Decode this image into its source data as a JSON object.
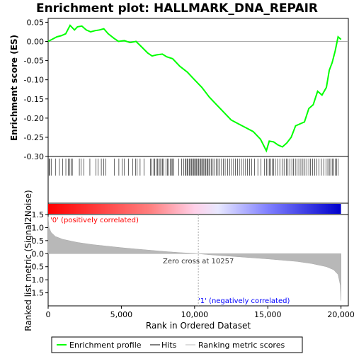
{
  "chart_data": {
    "type": "line",
    "title": "Enrichment plot: HALLMARK_DNA_REPAIR",
    "top_panel": {
      "ylabel": "Enrichment score (ES)",
      "ylim": [
        -0.3,
        0.06
      ],
      "yticks": [
        "0.05",
        "0.00",
        "-0.05",
        "-0.10",
        "-0.15",
        "-0.20",
        "-0.25",
        "-0.30"
      ],
      "ytick_values": [
        0.05,
        0.0,
        -0.05,
        -0.1,
        -0.15,
        -0.2,
        -0.25,
        -0.3
      ],
      "series": [
        {
          "name": "Enrichment profile",
          "color": "#00ff00",
          "x": [
            0,
            250,
            600,
            900,
            1200,
            1500,
            1800,
            2000,
            2300,
            2600,
            2900,
            3200,
            3500,
            3800,
            4100,
            4500,
            4800,
            5200,
            5600,
            6000,
            6400,
            6800,
            7100,
            7400,
            7800,
            8100,
            8500,
            9000,
            9500,
            10000,
            10500,
            11000,
            11500,
            12000,
            12500,
            13000,
            13500,
            14000,
            14500,
            14900,
            15100,
            15400,
            15700,
            16000,
            16300,
            16600,
            16900,
            17200,
            17500,
            17800,
            18100,
            18400,
            18700,
            19000,
            19200,
            19400,
            19600,
            19800,
            20000
          ],
          "y": [
            0.0,
            0.005,
            0.012,
            0.015,
            0.02,
            0.042,
            0.03,
            0.038,
            0.04,
            0.03,
            0.025,
            0.028,
            0.03,
            0.033,
            0.02,
            0.008,
            0.0,
            0.002,
            -0.003,
            0.0,
            -0.015,
            -0.03,
            -0.038,
            -0.035,
            -0.033,
            -0.04,
            -0.045,
            -0.065,
            -0.08,
            -0.1,
            -0.12,
            -0.145,
            -0.165,
            -0.185,
            -0.205,
            -0.215,
            -0.225,
            -0.235,
            -0.255,
            -0.285,
            -0.26,
            -0.262,
            -0.27,
            -0.275,
            -0.265,
            -0.25,
            -0.22,
            -0.215,
            -0.21,
            -0.175,
            -0.165,
            -0.13,
            -0.14,
            -0.12,
            -0.075,
            -0.055,
            -0.025,
            0.012,
            0.005
          ]
        }
      ]
    },
    "hits": {
      "name": "Hits",
      "positions": [
        60,
        130,
        230,
        520,
        770,
        1000,
        1210,
        1380,
        1460,
        1560,
        1650,
        2130,
        2240,
        2430,
        2850,
        3260,
        3400,
        3630,
        3800,
        3950,
        4510,
        4830,
        5060,
        5210,
        5480,
        5780,
        5960,
        6080,
        6280,
        6540,
        6980,
        7080,
        7210,
        7280,
        7380,
        7480,
        7560,
        7640,
        7720,
        7800,
        7880,
        8050,
        8150,
        8240,
        8330,
        8420,
        8500,
        8580,
        8930,
        9110,
        9260,
        9350,
        9420,
        9500,
        9560,
        9640,
        9720,
        9790,
        9860,
        9930,
        10000,
        10070,
        10140,
        10210,
        10280,
        10350,
        10420,
        10490,
        10560,
        10630,
        10700,
        10770,
        10840,
        10910,
        10980,
        11060,
        11140,
        11260,
        11380,
        11490,
        11600,
        11720,
        11840,
        11960,
        12090,
        12250,
        12400,
        12520,
        12660,
        12790,
        12930,
        13060,
        13200,
        13340,
        13480,
        13620,
        13760,
        13910,
        14100,
        14320,
        14540,
        14760,
        14910,
        15020,
        15120,
        15210,
        15300,
        15390,
        15520,
        15670,
        15820,
        15970,
        16110,
        16260,
        16380,
        16520,
        16640,
        16760,
        16880,
        17000,
        17120,
        17260,
        17400,
        17540,
        17680,
        17800,
        17920,
        18060,
        18200,
        18350,
        18500,
        18660,
        18820,
        18980,
        19100,
        19200,
        19300,
        19400,
        19500,
        19600,
        19700,
        19800
      ]
    },
    "ranked_metric": {
      "name": "Ranking metric scores",
      "ylabel": "Ranked list metric (Signal2Noise)",
      "ylim": [
        -2.0,
        1.5
      ],
      "yticks": [
        "1.5",
        "1.0",
        "0.5",
        "0.0",
        "-0.5",
        "-1.0",
        "-1.5"
      ],
      "ytick_values": [
        1.5,
        1.0,
        0.5,
        0.0,
        -0.5,
        -1.0,
        -1.5
      ],
      "x": [
        0,
        60,
        200,
        500,
        1000,
        2000,
        3000,
        4000,
        5000,
        6000,
        7000,
        8000,
        9000,
        10000,
        10257,
        11000,
        12000,
        13000,
        14000,
        15000,
        16000,
        17000,
        18000,
        19000,
        19500,
        19800,
        19950,
        20000
      ],
      "y": [
        1.42,
        1.0,
        0.82,
        0.66,
        0.55,
        0.43,
        0.35,
        0.29,
        0.23,
        0.18,
        0.13,
        0.08,
        0.04,
        0.01,
        0.0,
        -0.04,
        -0.08,
        -0.12,
        -0.16,
        -0.2,
        -0.25,
        -0.3,
        -0.38,
        -0.5,
        -0.62,
        -0.8,
        -1.2,
        -1.8
      ]
    },
    "xlabel": "Rank in Ordered Dataset",
    "xlim": [
      0,
      20500
    ],
    "xticks": [
      "0",
      "5,000",
      "10,000",
      "15,000",
      "20,000"
    ],
    "xtick_values": [
      0,
      5000,
      10000,
      15000,
      20000
    ],
    "zero_cross": 10257,
    "annotations": {
      "positive": "'0' (positively correlated)",
      "negative": "'1' (negatively correlated)",
      "zero_cross": "Zero cross at 10257"
    },
    "legend": {
      "placement": "bottom",
      "entries": [
        {
          "label": "Enrichment profile",
          "color": "#00ff00"
        },
        {
          "label": "Hits",
          "color": "#000000"
        },
        {
          "label": "Ranking metric scores",
          "color": "#bbbbbb"
        }
      ]
    },
    "colors": {
      "positive_annotation": "#ff0000",
      "negative_annotation": "#0000ff",
      "metric_fill": "#b8b8b8"
    }
  }
}
